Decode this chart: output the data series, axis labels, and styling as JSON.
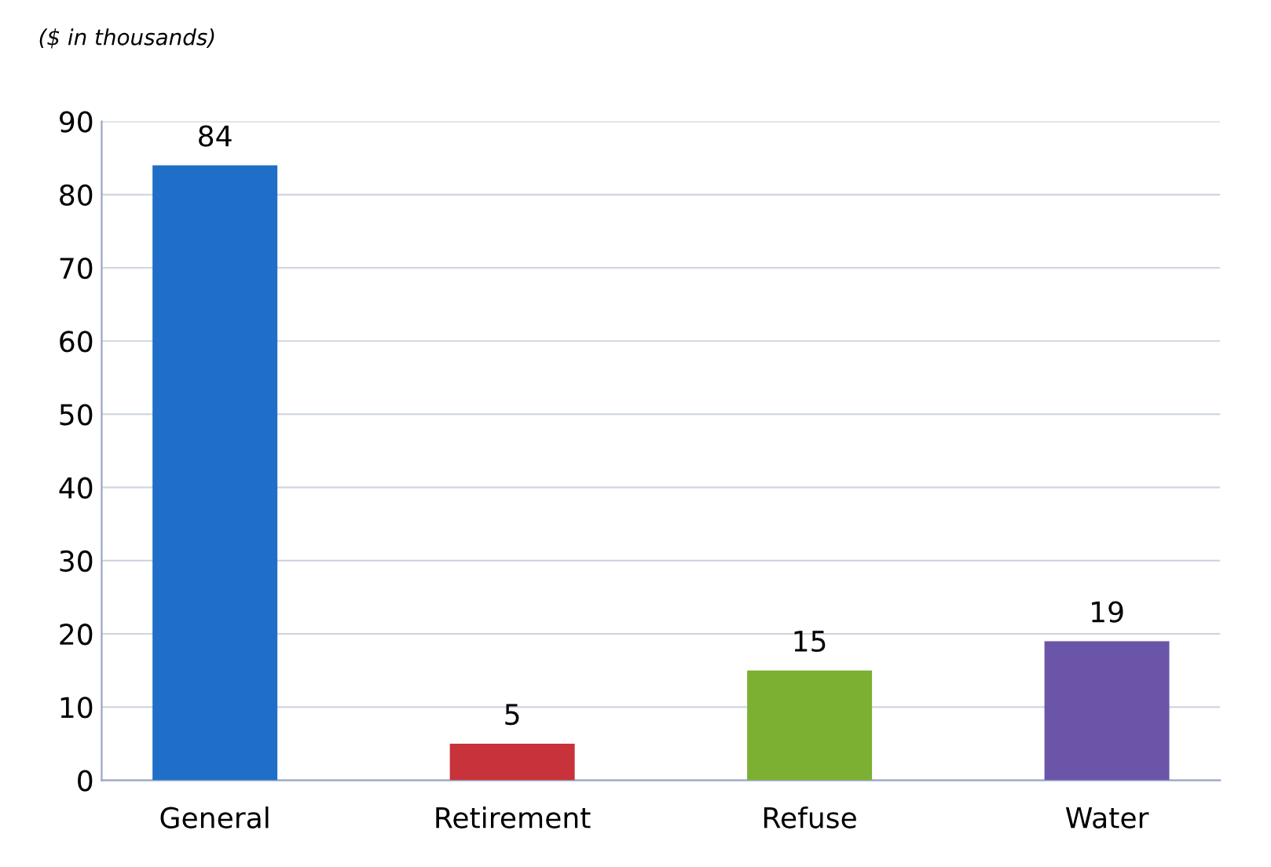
{
  "chart_data": {
    "type": "bar",
    "title": "($ in thousands)",
    "categories": [
      "General",
      "Retirement",
      "Refuse",
      "Water"
    ],
    "values": [
      84,
      5,
      15,
      19
    ],
    "colors": [
      "#1f6fc8",
      "#c8323a",
      "#7cb032",
      "#6b55a8"
    ],
    "ylim": [
      0,
      90
    ],
    "yticks": [
      0,
      10,
      20,
      30,
      40,
      50,
      60,
      70,
      80,
      90
    ],
    "grid": "y",
    "data_labels": true
  }
}
